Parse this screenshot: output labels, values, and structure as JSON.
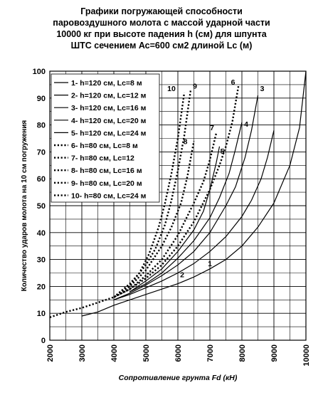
{
  "chart_data": {
    "type": "line",
    "title_lines": [
      "Графики погружающей способности",
      "паровоздушного молота с массой ударной части",
      "10000 кг при высоте падения h (см) для шпунта",
      "ШТС сечением Ас=600 см2  длиной Lc (м)"
    ],
    "xlabel": "Сопротивление грунта Fd (кН)",
    "ylabel": "Количество ударов молота на 10 см погружения",
    "xlim": [
      2000,
      10000
    ],
    "ylim": [
      0,
      100
    ],
    "x_ticks": [
      "2000",
      "3000",
      "4000",
      "5000",
      "6000",
      "7000",
      "8000",
      "9000",
      "10000"
    ],
    "y_ticks": [
      "0",
      "10",
      "20",
      "30",
      "40",
      "50",
      "60",
      "70",
      "80",
      "90",
      "100"
    ],
    "grid": true,
    "legend_position": "top-left",
    "series": [
      {
        "name": "1- h=120 см, Lc=8 м",
        "label": "1",
        "style": "solid",
        "x": [
          3000,
          3500,
          4000,
          4500,
          5000,
          5500,
          6000,
          6500,
          7000,
          7500,
          8000,
          8500,
          9000,
          9500,
          9800,
          10000
        ],
        "y": [
          9,
          10.5,
          13,
          15,
          17,
          19,
          21,
          23.5,
          26.5,
          30,
          35,
          42,
          51,
          65,
          79,
          100
        ]
      },
      {
        "name": "2- h=120 см, Lc=12 м",
        "label": "2",
        "style": "solid",
        "x": [
          4000,
          4500,
          5000,
          5500,
          6000,
          6500,
          7000,
          7500,
          8000,
          8300,
          8600,
          8800,
          9000
        ],
        "y": [
          15,
          17,
          19.5,
          22,
          25,
          28.5,
          33,
          38.5,
          46,
          52,
          60,
          68,
          78
        ]
      },
      {
        "name": "3- h=120 см, Lc=16 м",
        "label": "3",
        "style": "solid",
        "x": [
          4000,
          4500,
          5000,
          5500,
          6000,
          6500,
          7000,
          7500,
          7800,
          8100,
          8300,
          8500
        ],
        "y": [
          15,
          17.5,
          20.5,
          24,
          28,
          33,
          40,
          50,
          57,
          68,
          78,
          91
        ]
      },
      {
        "name": "4- h=120 см, Lc=20 м",
        "label": "4",
        "style": "solid",
        "x": [
          4500,
          5000,
          5500,
          6000,
          6500,
          7000,
          7300,
          7600,
          7800,
          8000
        ],
        "y": [
          18,
          21,
          25,
          30.5,
          37,
          45.5,
          53,
          62,
          71,
          81
        ]
      },
      {
        "name": "5- h=120 см, Lc=24 м",
        "label": "5",
        "style": "solid",
        "x": [
          4500,
          5000,
          5500,
          6000,
          6500,
          6800,
          7000,
          7200,
          7300
        ],
        "y": [
          18,
          22,
          26.5,
          33,
          41,
          48,
          56,
          66,
          72
        ]
      },
      {
        "name": "6- h=80 см, Lc=8 м",
        "label": "6",
        "style": "dotted",
        "x": [
          2000,
          2500,
          3000,
          3500,
          4000,
          4500,
          5000,
          5500,
          6000,
          6500,
          7000,
          7300,
          7500,
          7700,
          7900
        ],
        "y": [
          8.5,
          10.5,
          12,
          14,
          16,
          19,
          23,
          28,
          35,
          44,
          56,
          65,
          72,
          81,
          95
        ]
      },
      {
        "name": "7- h=80 см, Lc=12",
        "label": "7",
        "style": "dotted",
        "x": [
          4000,
          4500,
          5000,
          5500,
          6000,
          6500,
          6800,
          7000,
          7200
        ],
        "y": [
          16,
          19,
          24,
          30,
          39,
          51,
          59,
          67,
          77
        ]
      },
      {
        "name": "8- h=80 см, Lc=16 м",
        "label": "8",
        "style": "dotted",
        "x": [
          4000,
          4500,
          5000,
          5500,
          5800,
          6100,
          6300,
          6500
        ],
        "y": [
          16,
          20,
          26,
          35,
          42,
          51,
          61,
          74
        ]
      },
      {
        "name": "9- h=80 см, Lc=20 м",
        "label": "9",
        "style": "dotted",
        "x": [
          4000,
          4500,
          5000,
          5300,
          5600,
          5800,
          6000,
          6200,
          6400
        ],
        "y": [
          16,
          20.5,
          28,
          34,
          43,
          52,
          63,
          76,
          93
        ]
      },
      {
        "name": "10- h=80 см, Lc=24 м",
        "label": "10",
        "style": "dotted",
        "x": [
          4000,
          4500,
          4800,
          5100,
          5400,
          5600,
          5800,
          6000,
          6200
        ],
        "y": [
          16,
          21,
          25,
          32,
          42,
          51,
          62,
          75,
          92
        ]
      }
    ]
  }
}
